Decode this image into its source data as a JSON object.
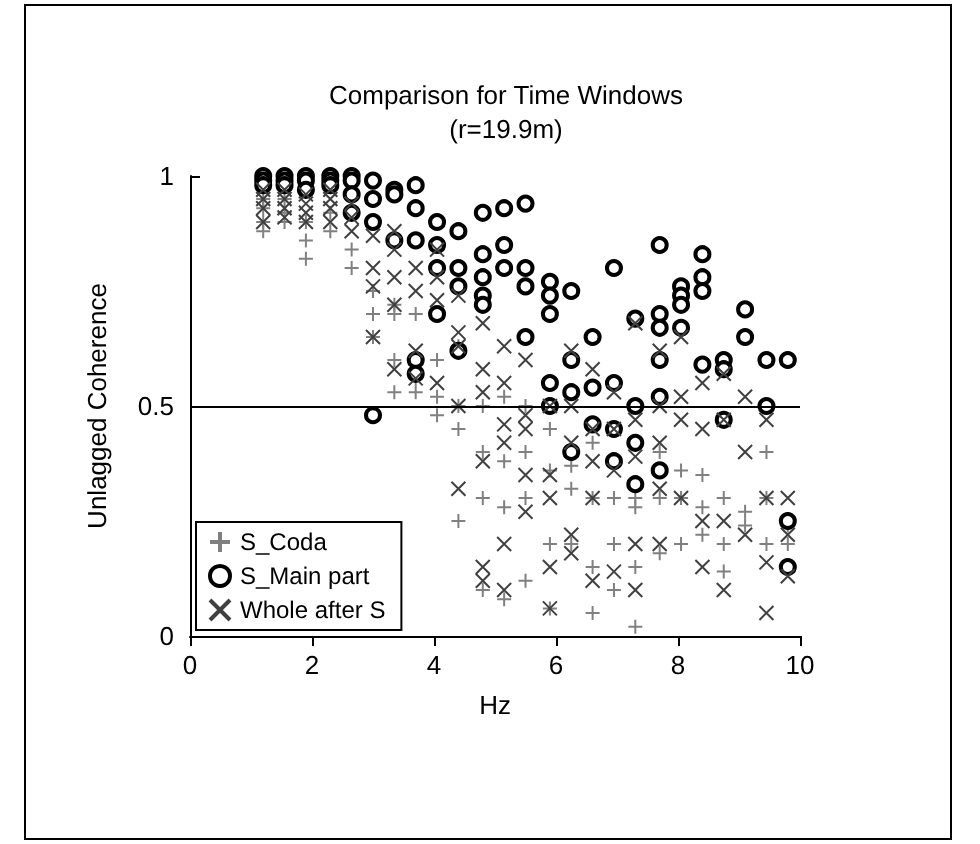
{
  "chart_data": {
    "type": "scatter",
    "title": "Comparison for Time Windows",
    "subtitle": "(r=19.9m)",
    "xlabel": "Hz",
    "ylabel": "Unlagged Coherence",
    "xlim": [
      0,
      10
    ],
    "ylim": [
      0,
      1
    ],
    "xticks": [
      0,
      2,
      4,
      6,
      8,
      10
    ],
    "yticks": [
      0,
      0.5,
      1
    ],
    "grid": false,
    "legend": "bottom left",
    "ref_lines": [
      {
        "axis": "y",
        "value": 0.5,
        "color": "#000000"
      }
    ],
    "series": [
      {
        "name": "S_Coda",
        "color": "#808080",
        "marker": "plus",
        "x": [
          1.2,
          1.2,
          1.2,
          1.2,
          1.55,
          1.55,
          1.55,
          1.9,
          1.9,
          1.9,
          2.3,
          2.3,
          2.65,
          2.65,
          3.0,
          3.0,
          3.0,
          3.35,
          3.35,
          3.35,
          3.35,
          3.7,
          3.7,
          3.7,
          4.05,
          4.05,
          4.05,
          4.4,
          4.4,
          4.4,
          4.4,
          4.8,
          4.8,
          4.8,
          4.8,
          5.15,
          5.15,
          5.15,
          5.15,
          5.5,
          5.5,
          5.5,
          5.5,
          5.9,
          5.9,
          5.9,
          5.9,
          6.25,
          6.25,
          6.25,
          6.6,
          6.6,
          6.6,
          6.6,
          6.95,
          6.95,
          6.95,
          7.3,
          7.3,
          7.3,
          7.3,
          7.7,
          7.7,
          7.7,
          8.05,
          8.05,
          8.05,
          8.4,
          8.4,
          8.4,
          8.75,
          8.75,
          8.75,
          9.1,
          9.1,
          9.45,
          9.45,
          9.45,
          9.8,
          9.8
        ],
        "values": [
          0.95,
          0.93,
          0.9,
          0.88,
          0.95,
          0.92,
          0.9,
          0.9,
          0.86,
          0.82,
          0.92,
          0.88,
          0.84,
          0.8,
          0.75,
          0.7,
          0.65,
          0.72,
          0.7,
          0.6,
          0.53,
          0.7,
          0.56,
          0.53,
          0.6,
          0.52,
          0.48,
          0.63,
          0.5,
          0.45,
          0.25,
          0.5,
          0.4,
          0.3,
          0.1,
          0.52,
          0.38,
          0.28,
          0.08,
          0.5,
          0.4,
          0.3,
          0.12,
          0.45,
          0.36,
          0.2,
          0.06,
          0.37,
          0.32,
          0.2,
          0.42,
          0.3,
          0.15,
          0.05,
          0.3,
          0.2,
          0.1,
          0.3,
          0.28,
          0.15,
          0.02,
          0.4,
          0.3,
          0.18,
          0.36,
          0.3,
          0.2,
          0.35,
          0.28,
          0.22,
          0.3,
          0.2,
          0.14,
          0.27,
          0.24,
          0.4,
          0.3,
          0.2,
          0.24,
          0.2
        ]
      },
      {
        "name": "S_Main part",
        "color": "#000000",
        "marker": "circle",
        "x": [
          1.2,
          1.2,
          1.2,
          1.55,
          1.55,
          1.55,
          1.9,
          1.9,
          1.9,
          2.3,
          2.3,
          2.3,
          2.65,
          2.65,
          2.65,
          2.65,
          3.0,
          3.0,
          3.0,
          3.0,
          3.35,
          3.35,
          3.35,
          3.7,
          3.7,
          3.7,
          3.7,
          3.7,
          4.05,
          4.05,
          4.05,
          4.05,
          4.4,
          4.4,
          4.4,
          4.4,
          4.8,
          4.8,
          4.8,
          4.8,
          4.8,
          5.15,
          5.15,
          5.15,
          5.5,
          5.5,
          5.5,
          5.5,
          5.9,
          5.9,
          5.9,
          5.9,
          5.9,
          6.25,
          6.25,
          6.25,
          6.25,
          6.6,
          6.6,
          6.6,
          6.95,
          6.95,
          6.95,
          6.95,
          7.3,
          7.3,
          7.3,
          7.3,
          7.7,
          7.7,
          7.7,
          7.7,
          7.7,
          7.7,
          8.05,
          8.05,
          8.05,
          8.05,
          8.4,
          8.4,
          8.4,
          8.4,
          8.75,
          8.75,
          8.75,
          9.1,
          9.1,
          9.45,
          9.45,
          9.8,
          9.8,
          9.8
        ],
        "values": [
          1.0,
          0.99,
          0.98,
          1.0,
          0.99,
          0.98,
          1.0,
          0.99,
          0.97,
          1.0,
          0.99,
          0.98,
          1.0,
          0.99,
          0.96,
          0.92,
          0.99,
          0.95,
          0.9,
          0.48,
          0.97,
          0.96,
          0.86,
          0.98,
          0.93,
          0.86,
          0.6,
          0.57,
          0.9,
          0.85,
          0.8,
          0.7,
          0.88,
          0.8,
          0.76,
          0.62,
          0.92,
          0.83,
          0.78,
          0.74,
          0.72,
          0.93,
          0.85,
          0.8,
          0.94,
          0.8,
          0.76,
          0.65,
          0.77,
          0.74,
          0.7,
          0.55,
          0.5,
          0.75,
          0.6,
          0.53,
          0.4,
          0.65,
          0.54,
          0.46,
          0.8,
          0.55,
          0.45,
          0.38,
          0.69,
          0.5,
          0.42,
          0.33,
          0.85,
          0.7,
          0.67,
          0.6,
          0.52,
          0.36,
          0.76,
          0.74,
          0.72,
          0.67,
          0.83,
          0.78,
          0.75,
          0.59,
          0.6,
          0.58,
          0.47,
          0.71,
          0.65,
          0.6,
          0.5,
          0.6,
          0.25,
          0.15
        ]
      },
      {
        "name": "Whole after S",
        "color": "#404040",
        "marker": "cross",
        "x": [
          1.2,
          1.2,
          1.2,
          1.2,
          1.55,
          1.55,
          1.55,
          1.55,
          1.9,
          1.9,
          1.9,
          1.9,
          2.3,
          2.3,
          2.3,
          2.3,
          2.65,
          2.65,
          2.65,
          3.0,
          3.0,
          3.0,
          3.0,
          3.35,
          3.35,
          3.35,
          3.35,
          3.35,
          3.7,
          3.7,
          3.7,
          3.7,
          4.05,
          4.05,
          4.05,
          4.05,
          4.4,
          4.4,
          4.4,
          4.4,
          4.4,
          4.8,
          4.8,
          4.8,
          4.8,
          4.8,
          4.8,
          5.15,
          5.15,
          5.15,
          5.15,
          5.15,
          5.15,
          5.5,
          5.5,
          5.5,
          5.5,
          5.5,
          5.9,
          5.9,
          5.9,
          5.9,
          5.9,
          6.25,
          6.25,
          6.25,
          6.25,
          6.25,
          6.6,
          6.6,
          6.6,
          6.6,
          6.6,
          6.95,
          6.95,
          6.95,
          6.95,
          7.3,
          7.3,
          7.3,
          7.3,
          7.3,
          7.7,
          7.7,
          7.7,
          7.7,
          7.7,
          8.05,
          8.05,
          8.05,
          8.05,
          8.4,
          8.4,
          8.4,
          8.4,
          8.75,
          8.75,
          8.75,
          8.75,
          9.1,
          9.1,
          9.1,
          9.45,
          9.45,
          9.45,
          9.45,
          9.8,
          9.8,
          9.8
        ],
        "values": [
          0.97,
          0.95,
          0.93,
          0.9,
          0.97,
          0.95,
          0.93,
          0.91,
          0.96,
          0.94,
          0.92,
          0.9,
          0.97,
          0.95,
          0.93,
          0.9,
          0.94,
          0.91,
          0.88,
          0.87,
          0.8,
          0.76,
          0.65,
          0.88,
          0.84,
          0.78,
          0.72,
          0.58,
          0.8,
          0.75,
          0.62,
          0.56,
          0.84,
          0.78,
          0.73,
          0.55,
          0.74,
          0.66,
          0.63,
          0.5,
          0.32,
          0.68,
          0.58,
          0.53,
          0.38,
          0.15,
          0.12,
          0.63,
          0.55,
          0.46,
          0.42,
          0.2,
          0.1,
          0.6,
          0.48,
          0.45,
          0.35,
          0.27,
          0.5,
          0.35,
          0.3,
          0.15,
          0.06,
          0.62,
          0.5,
          0.42,
          0.22,
          0.18,
          0.58,
          0.45,
          0.38,
          0.3,
          0.12,
          0.53,
          0.45,
          0.36,
          0.14,
          0.68,
          0.47,
          0.39,
          0.2,
          0.1,
          0.62,
          0.5,
          0.42,
          0.32,
          0.2,
          0.65,
          0.52,
          0.47,
          0.3,
          0.55,
          0.45,
          0.25,
          0.15,
          0.57,
          0.47,
          0.25,
          0.1,
          0.52,
          0.4,
          0.22,
          0.47,
          0.3,
          0.16,
          0.05,
          0.3,
          0.22,
          0.13
        ]
      }
    ]
  }
}
